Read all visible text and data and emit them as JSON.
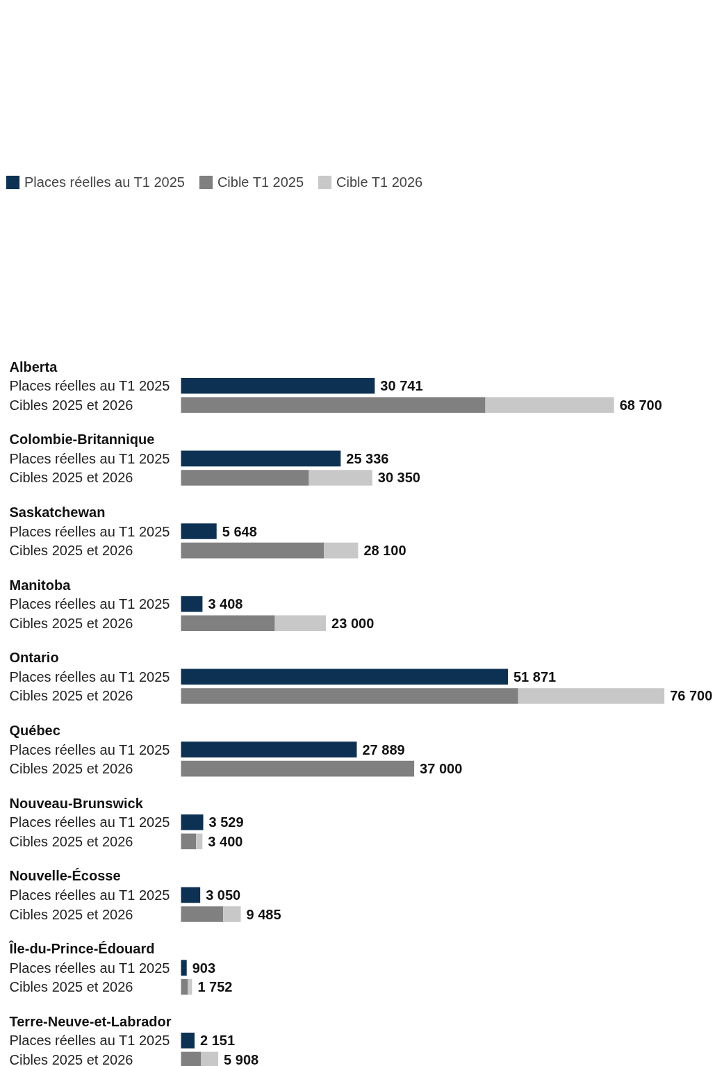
{
  "chart_data": {
    "type": "bar",
    "orientation": "horizontal",
    "stacked": true,
    "legend": "top left",
    "categories": [
      "Places réelles au T1 2025",
      "Cibles 2025 et 2026",
      "Places réelles au T1 2025",
      "Cibles 2025 et 2026",
      "Places réelles au T1 2025",
      "Cibles 2025 et 2026",
      "Places réelles au T1 2025",
      "Cibles 2025 et 2026",
      "Places réelles au T1 2025",
      "Cibles 2025 et 2026",
      "Places réelles au T1 2025",
      "Cibles 2025 et 2026",
      "Places réelles au T1 2025",
      "Cibles 2025 et 2026",
      "Places réelles au T1 2025",
      "Cibles 2025 et 2026",
      "Places réelles au T1 2025",
      "Cibles 2025 et 2026",
      "Places réelles au T1 2025",
      "Cibles 2025 et 2026"
    ],
    "annotations": [
      "Alberta",
      "Colombie-Britannique",
      "Saskatchewan",
      "Manitoba",
      "Ontario",
      "Québec",
      "Nouveau-Brunswick",
      "Nouvelle-Écosse",
      "Île-du-Prince-Édouard",
      "Terre-Neuve-et-Labrador"
    ],
    "series": [
      {
        "name": "Places réelles au T1 2025",
        "color": "#0d3153",
        "values": [
          30741,
          null,
          25336,
          null,
          5648,
          null,
          3408,
          null,
          51871,
          null,
          27889,
          null,
          3529,
          null,
          3050,
          null,
          903,
          null,
          2151,
          null
        ],
        "value_labels": [
          "30 741",
          null,
          "25 336",
          null,
          "5 648",
          null,
          "3 408",
          null,
          "51 871",
          null,
          "27 889",
          null,
          "3 529",
          null,
          "3 050",
          null,
          "903",
          null,
          "2 151",
          null
        ]
      },
      {
        "name": "Cible T1 2025",
        "color": "#808080",
        "values": [
          null,
          48300,
          null,
          20300,
          null,
          22700,
          null,
          14900,
          null,
          53500,
          null,
          37000,
          null,
          2400,
          null,
          6700,
          null,
          1100,
          null,
          3200
        ]
      },
      {
        "name": "Cible T1 2026",
        "color": "#c8c8c8",
        "values": [
          null,
          20400,
          null,
          10050,
          null,
          5400,
          null,
          8100,
          null,
          23200,
          null,
          null,
          null,
          1000,
          null,
          2785,
          null,
          652,
          null,
          2708
        ]
      }
    ],
    "totals": [
      null,
      "68 700",
      null,
      "30 350",
      null,
      "28 100",
      null,
      "23 000",
      null,
      "76 700",
      null,
      "37 000",
      null,
      "3 400",
      null,
      "9 485",
      null,
      "1 752",
      null,
      "5 908"
    ]
  }
}
